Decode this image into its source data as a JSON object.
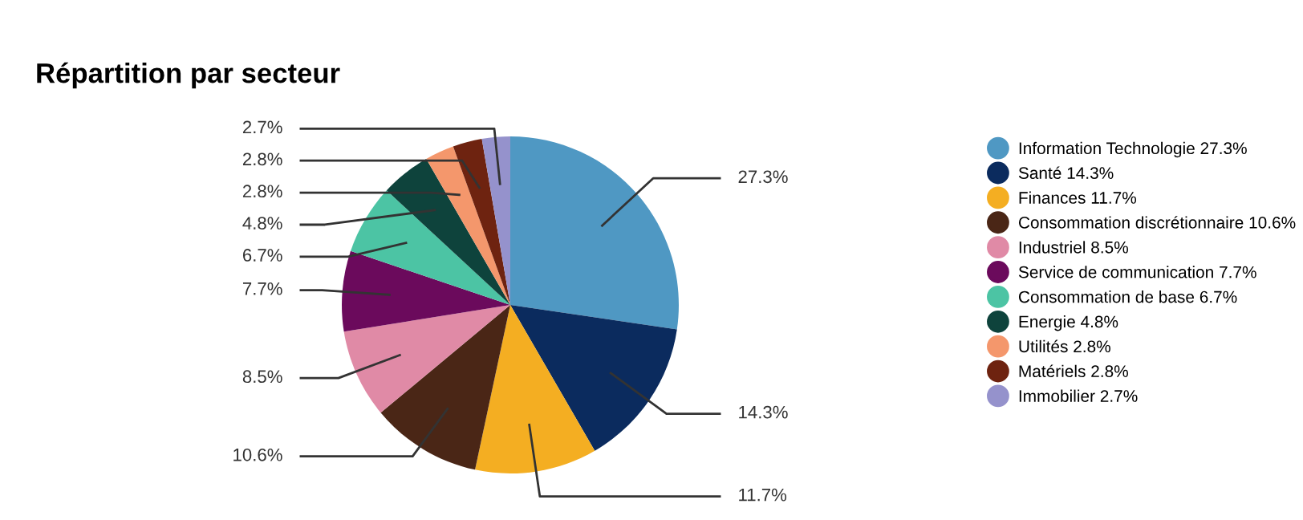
{
  "chart_data": {
    "type": "pie",
    "title": "Répartition par secteur",
    "categories": [
      "Information Technologie",
      "Santé",
      "Finances",
      "Consommation discrétionnaire",
      "Industriel",
      "Service de communication",
      "Consommation de base",
      "Energie",
      "Utilités",
      "Matériels",
      "Immobilier"
    ],
    "values": [
      27.3,
      14.3,
      11.7,
      10.6,
      8.5,
      7.7,
      6.7,
      4.8,
      2.8,
      2.8,
      2.7
    ],
    "value_labels": [
      "27.3%",
      "14.3%",
      "11.7%",
      "10.6%",
      "8.5%",
      "7.7%",
      "6.7%",
      "4.8%",
      "2.8%",
      "2.8%",
      "2.7%"
    ],
    "colors": [
      "#4f98c3",
      "#0b2b5e",
      "#f4ae22",
      "#4a2616",
      "#e08aa6",
      "#6b0a5c",
      "#4cc4a4",
      "#0e433c",
      "#f4976c",
      "#6e2310",
      "#9592cc"
    ],
    "legend": "right"
  }
}
